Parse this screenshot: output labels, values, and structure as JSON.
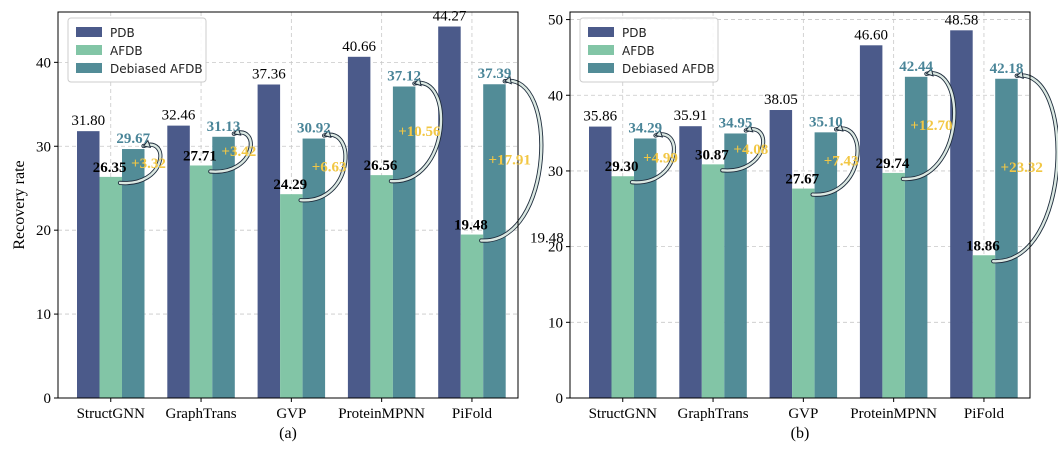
{
  "colors": {
    "pdb": "#4b5a8a",
    "afdb": "#82c5a6",
    "debiased": "#528c97",
    "improvement": "#f2c744",
    "debiased_label": "#4a8598",
    "arrow_fill": "#dbe8e2",
    "arrow_stroke": "#1f2d3d",
    "grid": "#c8c8c8"
  },
  "chart_data": [
    {
      "type": "bar",
      "panel_label": "(a)",
      "ylabel": "Recovery rate",
      "ylim": [
        0,
        46
      ],
      "yticks": [
        "0",
        "10",
        "20",
        "30",
        "40"
      ],
      "categories": [
        "StructGNN",
        "GraphTrans",
        "GVP",
        "ProteinMPNN",
        "PiFold"
      ],
      "legend": [
        "PDB",
        "AFDB",
        "Debiased AFDB"
      ],
      "legend_position": "top-left",
      "grid": true,
      "series": [
        {
          "name": "PDB",
          "values": [
            31.8,
            32.46,
            37.36,
            40.66,
            44.27
          ]
        },
        {
          "name": "AFDB",
          "values": [
            26.35,
            27.71,
            24.29,
            26.56,
            19.48
          ]
        },
        {
          "name": "Debiased AFDB",
          "values": [
            29.67,
            31.13,
            30.92,
            37.12,
            37.39
          ]
        }
      ],
      "labels": {
        "pdb": [
          "31.80",
          "32.46",
          "37.36",
          "40.66",
          "44.27"
        ],
        "afdb": [
          "26.35",
          "27.71",
          "24.29",
          "26.56",
          "19.48"
        ],
        "debiased": [
          "29.67",
          "31.13",
          "30.92",
          "37.12",
          "37.39"
        ],
        "improvement": [
          "+3.32",
          "+3.42",
          "+6.63",
          "+10.56",
          "+17.91"
        ]
      }
    },
    {
      "type": "bar",
      "panel_label": "(b)",
      "ylabel": "",
      "ylim": [
        0,
        51
      ],
      "yticks": [
        "0",
        "10",
        "20",
        "30",
        "40",
        "50"
      ],
      "categories": [
        "StructGNN",
        "GraphTrans",
        "GVP",
        "ProteinMPNN",
        "PiFold"
      ],
      "legend": [
        "PDB",
        "AFDB",
        "Debiased AFDB"
      ],
      "legend_position": "top-left",
      "grid": true,
      "series": [
        {
          "name": "PDB",
          "values": [
            35.86,
            35.91,
            38.05,
            46.6,
            48.58
          ]
        },
        {
          "name": "AFDB",
          "values": [
            29.3,
            30.87,
            27.67,
            29.74,
            18.86
          ]
        },
        {
          "name": "Debiased AFDB",
          "values": [
            34.29,
            34.95,
            35.1,
            42.44,
            42.18
          ]
        }
      ],
      "labels": {
        "pdb": [
          "35.86",
          "35.91",
          "38.05",
          "46.60",
          "48.58"
        ],
        "afdb": [
          "29.30",
          "30.87",
          "27.67",
          "29.74",
          "18.86"
        ],
        "debiased": [
          "34.29",
          "34.95",
          "35.10",
          "42.44",
          "42.18"
        ],
        "improvement": [
          "+4.99",
          "+4.08",
          "+7.43",
          "+12.70",
          "+23.32"
        ]
      },
      "annotations": [
        "19.48"
      ]
    }
  ]
}
